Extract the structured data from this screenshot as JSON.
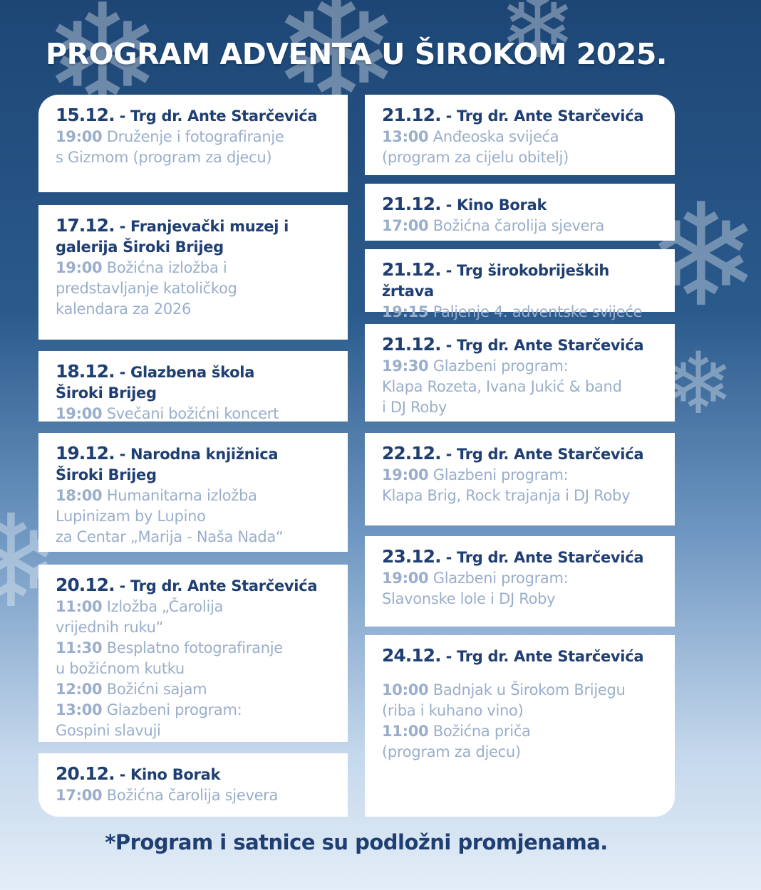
{
  "title": "PROGRAM ADVENTA U ŠIROKOM 2025.",
  "footer": "*Program i satnice su podložni promjenama.",
  "colors": {
    "primary": "#1f3f73",
    "secondary": "#9aaecb",
    "background": "#1d4675"
  },
  "left_column": [
    {
      "date": "15.12.",
      "place": "Trg dr. Ante Starčevića",
      "items": [
        {
          "time": "19:00",
          "text": "Druženje i fotografiranje\ns Gizmom (program za djecu)"
        }
      ]
    },
    {
      "date": "17.12.",
      "place": "Franjevački muzej i\ngalerija Široki Brijeg",
      "items": [
        {
          "time": "19:00",
          "text": "Božićna izložba i\npredstavljanje katoličkog\nkalendara za 2026"
        }
      ]
    },
    {
      "date": "18.12.",
      "place": "Glazbena škola\nŠiroki Brijeg",
      "items": [
        {
          "time": "19:00",
          "text": "Svečani božićni koncert"
        }
      ]
    },
    {
      "date": "19.12.",
      "place": "Narodna knjižnica\nŠiroki Brijeg",
      "items": [
        {
          "time": "18:00",
          "text": "Humanitarna izložba\nLupinizam by Lupino\nza Centar „Marija - Naša Nada“"
        }
      ]
    },
    {
      "date": "20.12.",
      "place": "Trg dr. Ante Starčevića",
      "items": [
        {
          "time": "11:00",
          "text": "Izložba „Čarolija\nvrijednih ruku“"
        },
        {
          "time": "11:30",
          "text": "Besplatno fotografiranje\nu božićnom kutku"
        },
        {
          "time": "12:00",
          "text": "Božićni sajam"
        },
        {
          "time": "13:00",
          "text": "Glazbeni program:\nGospini slavuji"
        }
      ]
    },
    {
      "date": "20.12.",
      "place": "Kino Borak",
      "items": [
        {
          "time": "17:00",
          "text": "Božićna čarolija sjevera"
        }
      ]
    }
  ],
  "right_column": [
    {
      "date": "21.12.",
      "place": "Trg dr. Ante Starčevića",
      "items": [
        {
          "time": "13:00",
          "text": "Anđeoska svijeća\n(program za cijelu obitelj)"
        }
      ]
    },
    {
      "date": "21.12.",
      "place": "Kino Borak",
      "items": [
        {
          "time": "17:00",
          "text": "Božićna čarolija sjevera"
        }
      ]
    },
    {
      "date": "21.12.",
      "place": "Trg širokobrijeških žrtava",
      "items": [
        {
          "time": "19:15",
          "text": "Paljenje 4. adventske svijeće"
        }
      ]
    },
    {
      "date": "21.12.",
      "place": "Trg dr. Ante Starčevića",
      "items": [
        {
          "time": "19:30",
          "text": "Glazbeni program:\nKlapa Rozeta, Ivana Jukić & band\ni DJ Roby"
        }
      ]
    },
    {
      "date": "22.12.",
      "place": "Trg dr. Ante Starčevića",
      "items": [
        {
          "time": "19:00",
          "text": "Glazbeni program:\nKlapa Brig, Rock trajanja i DJ Roby"
        }
      ]
    },
    {
      "date": "23.12.",
      "place": "Trg dr. Ante Starčevića",
      "items": [
        {
          "time": "19:00",
          "text": "Glazbeni program:\nSlavonske lole i DJ Roby"
        }
      ]
    },
    {
      "date": "24.12.",
      "place": "Trg dr. Ante Starčevića",
      "items": [
        {
          "time": "10:00",
          "text": "Badnjak u Širokom Brijegu\n(riba i kuhano vino)"
        },
        {
          "time": "11:00",
          "text": "Božićna priča\n(program za djecu)"
        }
      ]
    }
  ]
}
